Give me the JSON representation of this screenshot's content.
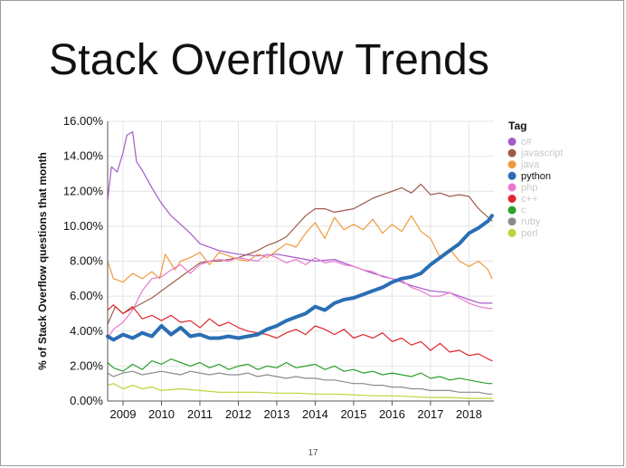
{
  "slide": {
    "title": "Stack Overflow Trends",
    "page_number": "17"
  },
  "chart_data": {
    "type": "line",
    "ylabel": "% of Stack Overflow questions that month",
    "ylim": [
      0,
      16
    ],
    "yticks": [
      "0.00%",
      "2.00%",
      "4.00%",
      "6.00%",
      "8.00%",
      "10.00%",
      "12.00%",
      "14.00%",
      "16.00%"
    ],
    "xlim": [
      2008.6,
      2018.65
    ],
    "xticks": [
      "2009",
      "2010",
      "2011",
      "2012",
      "2013",
      "2014",
      "2015",
      "2016",
      "2017",
      "2018"
    ],
    "grid": true,
    "legend_title": "Tag",
    "legend_position": "right",
    "highlighted_series": "python",
    "series": [
      {
        "name": "c#",
        "color": "#a55bc7",
        "x": [
          2008.6,
          2008.7,
          2008.85,
          2009.0,
          2009.1,
          2009.25,
          2009.35,
          2009.5,
          2009.75,
          2010.0,
          2010.25,
          2010.5,
          2010.75,
          2011.0,
          2011.5,
          2012.0,
          2012.5,
          2013.0,
          2013.5,
          2014.0,
          2014.5,
          2015.0,
          2015.5,
          2016.0,
          2016.5,
          2017.0,
          2017.5,
          2018.0,
          2018.3,
          2018.6
        ],
        "y": [
          11.5,
          13.4,
          13.1,
          14.2,
          15.2,
          15.4,
          13.7,
          13.2,
          12.2,
          11.3,
          10.6,
          10.1,
          9.6,
          9.0,
          8.6,
          8.4,
          8.3,
          8.4,
          8.2,
          8.0,
          8.1,
          7.7,
          7.3,
          7.0,
          6.6,
          6.3,
          6.2,
          5.8,
          5.6,
          5.6
        ]
      },
      {
        "name": "javascript",
        "color": "#9c5b4a",
        "x": [
          2008.6,
          2008.8,
          2009.0,
          2009.25,
          2009.5,
          2009.75,
          2010.0,
          2010.25,
          2010.5,
          2010.75,
          2011.0,
          2011.25,
          2011.5,
          2011.75,
          2012.0,
          2012.25,
          2012.5,
          2012.75,
          2013.0,
          2013.25,
          2013.5,
          2013.75,
          2014.0,
          2014.25,
          2014.5,
          2014.75,
          2015.0,
          2015.25,
          2015.5,
          2015.75,
          2016.0,
          2016.25,
          2016.5,
          2016.75,
          2017.0,
          2017.25,
          2017.5,
          2017.75,
          2018.0,
          2018.25,
          2018.5,
          2018.6
        ],
        "y": [
          4.4,
          5.4,
          5.0,
          5.3,
          5.6,
          5.9,
          6.3,
          6.7,
          7.1,
          7.5,
          7.9,
          8.0,
          8.0,
          8.1,
          8.2,
          8.4,
          8.6,
          8.9,
          9.1,
          9.4,
          10.0,
          10.6,
          11.0,
          11.0,
          10.8,
          10.9,
          11.0,
          11.3,
          11.6,
          11.8,
          12.0,
          12.2,
          11.9,
          12.4,
          11.8,
          11.9,
          11.7,
          11.8,
          11.7,
          11.0,
          10.5,
          10.3
        ]
      },
      {
        "name": "java",
        "color": "#f09a3e",
        "x": [
          2008.6,
          2008.75,
          2009.0,
          2009.25,
          2009.5,
          2009.75,
          2009.95,
          2010.1,
          2010.35,
          2010.5,
          2010.75,
          2011.0,
          2011.25,
          2011.5,
          2011.75,
          2012.0,
          2012.25,
          2012.5,
          2012.75,
          2013.0,
          2013.25,
          2013.5,
          2013.75,
          2014.0,
          2014.25,
          2014.5,
          2014.75,
          2015.0,
          2015.25,
          2015.5,
          2015.75,
          2016.0,
          2016.25,
          2016.5,
          2016.75,
          2017.0,
          2017.25,
          2017.5,
          2017.75,
          2018.0,
          2018.25,
          2018.5,
          2018.6
        ],
        "y": [
          8.0,
          7.0,
          6.8,
          7.3,
          7.0,
          7.4,
          7.0,
          8.4,
          7.5,
          8.0,
          8.2,
          8.5,
          7.8,
          8.5,
          8.3,
          8.1,
          8.0,
          8.4,
          8.2,
          8.6,
          9.0,
          8.8,
          9.6,
          10.2,
          9.3,
          10.5,
          9.8,
          10.1,
          9.8,
          10.4,
          9.6,
          10.1,
          9.7,
          10.6,
          9.7,
          9.3,
          8.2,
          8.7,
          8.0,
          7.7,
          8.0,
          7.5,
          7.0
        ]
      },
      {
        "name": "python",
        "color": "#2a6eb4",
        "x": [
          2008.6,
          2008.75,
          2009.0,
          2009.25,
          2009.5,
          2009.75,
          2010.0,
          2010.25,
          2010.5,
          2010.75,
          2011.0,
          2011.25,
          2011.5,
          2011.75,
          2012.0,
          2012.25,
          2012.5,
          2012.75,
          2013.0,
          2013.25,
          2013.5,
          2013.75,
          2014.0,
          2014.25,
          2014.5,
          2014.75,
          2015.0,
          2015.25,
          2015.5,
          2015.75,
          2016.0,
          2016.25,
          2016.5,
          2016.75,
          2017.0,
          2017.25,
          2017.5,
          2017.75,
          2018.0,
          2018.25,
          2018.5,
          2018.6
        ],
        "y": [
          3.7,
          3.5,
          3.8,
          3.6,
          3.9,
          3.7,
          4.3,
          3.8,
          4.2,
          3.7,
          3.8,
          3.6,
          3.6,
          3.7,
          3.6,
          3.7,
          3.8,
          4.1,
          4.3,
          4.6,
          4.8,
          5.0,
          5.4,
          5.2,
          5.6,
          5.8,
          5.9,
          6.1,
          6.3,
          6.5,
          6.8,
          7.0,
          7.1,
          7.3,
          7.8,
          8.2,
          8.6,
          9.0,
          9.6,
          9.9,
          10.3,
          10.6
        ]
      },
      {
        "name": "php",
        "color": "#e879cf",
        "x": [
          2008.6,
          2008.75,
          2009.0,
          2009.25,
          2009.5,
          2009.75,
          2010.0,
          2010.25,
          2010.5,
          2010.75,
          2011.0,
          2011.25,
          2011.5,
          2011.75,
          2012.0,
          2012.25,
          2012.5,
          2012.75,
          2013.0,
          2013.25,
          2013.5,
          2013.75,
          2014.0,
          2014.25,
          2014.5,
          2014.75,
          2015.0,
          2015.25,
          2015.5,
          2015.75,
          2016.0,
          2016.25,
          2016.5,
          2016.75,
          2017.0,
          2017.25,
          2017.5,
          2017.75,
          2018.0,
          2018.25,
          2018.5,
          2018.6
        ],
        "y": [
          3.6,
          4.1,
          4.5,
          5.2,
          6.3,
          7.0,
          7.1,
          7.5,
          7.8,
          7.3,
          7.8,
          8.0,
          8.1,
          8.0,
          8.2,
          8.1,
          8.0,
          8.4,
          8.2,
          7.9,
          8.1,
          7.8,
          8.2,
          7.9,
          8.0,
          7.8,
          7.7,
          7.5,
          7.4,
          7.1,
          7.0,
          6.9,
          6.5,
          6.3,
          6.0,
          6.0,
          6.2,
          5.9,
          5.6,
          5.4,
          5.3,
          5.3
        ]
      },
      {
        "name": "c++",
        "color": "#e0262b",
        "x": [
          2008.6,
          2008.75,
          2009.0,
          2009.25,
          2009.5,
          2009.75,
          2010.0,
          2010.25,
          2010.5,
          2010.75,
          2011.0,
          2011.25,
          2011.5,
          2011.75,
          2012.0,
          2012.25,
          2012.5,
          2012.75,
          2013.0,
          2013.25,
          2013.5,
          2013.75,
          2014.0,
          2014.25,
          2014.5,
          2014.75,
          2015.0,
          2015.25,
          2015.5,
          2015.75,
          2016.0,
          2016.25,
          2016.5,
          2016.75,
          2017.0,
          2017.25,
          2017.5,
          2017.75,
          2018.0,
          2018.25,
          2018.5,
          2018.6
        ],
        "y": [
          5.2,
          5.5,
          5.0,
          5.4,
          4.7,
          4.9,
          4.6,
          4.9,
          4.5,
          4.6,
          4.2,
          4.7,
          4.3,
          4.5,
          4.2,
          4.0,
          3.9,
          3.8,
          3.6,
          3.9,
          4.1,
          3.8,
          4.3,
          4.1,
          3.8,
          4.1,
          3.6,
          3.8,
          3.6,
          3.9,
          3.4,
          3.6,
          3.2,
          3.4,
          2.9,
          3.3,
          2.8,
          2.9,
          2.6,
          2.7,
          2.4,
          2.3
        ]
      },
      {
        "name": "c",
        "color": "#2ca02c",
        "x": [
          2008.6,
          2008.75,
          2009.0,
          2009.25,
          2009.5,
          2009.75,
          2010.0,
          2010.25,
          2010.5,
          2010.75,
          2011.0,
          2011.25,
          2011.5,
          2011.75,
          2012.0,
          2012.25,
          2012.5,
          2012.75,
          2013.0,
          2013.25,
          2013.5,
          2013.75,
          2014.0,
          2014.25,
          2014.5,
          2014.75,
          2015.0,
          2015.25,
          2015.5,
          2015.75,
          2016.0,
          2016.25,
          2016.5,
          2016.75,
          2017.0,
          2017.25,
          2017.5,
          2017.75,
          2018.0,
          2018.25,
          2018.5,
          2018.6
        ],
        "y": [
          2.2,
          1.9,
          1.7,
          2.1,
          1.8,
          2.3,
          2.1,
          2.4,
          2.2,
          2.0,
          2.2,
          1.9,
          2.1,
          1.8,
          2.0,
          2.1,
          1.8,
          2.0,
          1.9,
          2.2,
          1.9,
          2.0,
          2.1,
          1.8,
          2.0,
          1.7,
          1.8,
          1.6,
          1.7,
          1.5,
          1.6,
          1.5,
          1.4,
          1.6,
          1.3,
          1.4,
          1.2,
          1.3,
          1.2,
          1.1,
          1.0,
          1.0
        ]
      },
      {
        "name": "ruby",
        "color": "#8c8c8c",
        "x": [
          2008.6,
          2008.75,
          2009.0,
          2009.25,
          2009.5,
          2009.75,
          2010.0,
          2010.25,
          2010.5,
          2010.75,
          2011.0,
          2011.25,
          2011.5,
          2011.75,
          2012.0,
          2012.25,
          2012.5,
          2012.75,
          2013.0,
          2013.25,
          2013.5,
          2013.75,
          2014.0,
          2014.25,
          2014.5,
          2014.75,
          2015.0,
          2015.25,
          2015.5,
          2015.75,
          2016.0,
          2016.25,
          2016.5,
          2016.75,
          2017.0,
          2017.25,
          2017.5,
          2017.75,
          2018.0,
          2018.25,
          2018.5,
          2018.6
        ],
        "y": [
          1.6,
          1.4,
          1.6,
          1.7,
          1.5,
          1.6,
          1.7,
          1.6,
          1.5,
          1.7,
          1.6,
          1.5,
          1.6,
          1.5,
          1.5,
          1.6,
          1.4,
          1.5,
          1.4,
          1.3,
          1.4,
          1.3,
          1.3,
          1.2,
          1.2,
          1.1,
          1.0,
          1.0,
          0.9,
          0.9,
          0.8,
          0.8,
          0.7,
          0.7,
          0.6,
          0.6,
          0.6,
          0.5,
          0.5,
          0.5,
          0.4,
          0.4
        ]
      },
      {
        "name": "perl",
        "color": "#bcd33a",
        "x": [
          2008.6,
          2008.75,
          2009.0,
          2009.25,
          2009.5,
          2009.75,
          2010.0,
          2010.5,
          2011.0,
          2011.5,
          2012.0,
          2012.5,
          2013.0,
          2013.5,
          2014.0,
          2014.5,
          2015.0,
          2015.5,
          2016.0,
          2016.5,
          2017.0,
          2017.5,
          2018.0,
          2018.6
        ],
        "y": [
          0.9,
          1.0,
          0.7,
          0.9,
          0.7,
          0.8,
          0.6,
          0.7,
          0.6,
          0.5,
          0.5,
          0.5,
          0.45,
          0.45,
          0.4,
          0.4,
          0.35,
          0.3,
          0.3,
          0.25,
          0.2,
          0.2,
          0.15,
          0.15
        ]
      }
    ]
  }
}
